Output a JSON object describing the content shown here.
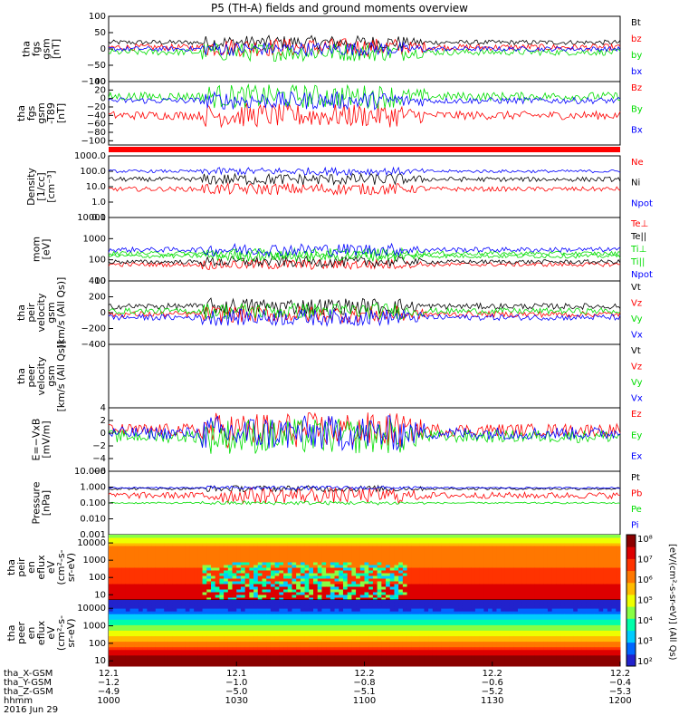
{
  "title": "P5 (TH-A) fields and ground moments overview",
  "colors": {
    "black": "#000000",
    "red": "#ff0000",
    "green": "#00dd00",
    "blue": "#0000ff"
  },
  "chart_data": [
    {
      "type": "line",
      "ylabel": [
        "tha",
        "fgs",
        "gsm",
        "[nT]"
      ],
      "ylim": [
        -100,
        100
      ],
      "yscale": "linear",
      "ticks": [
        "100",
        "50",
        "0",
        "−50",
        "−100"
      ],
      "tickvals": [
        100,
        50,
        0,
        -50,
        -100
      ],
      "series": [
        {
          "name": "Bt",
          "color": "#000000",
          "level": 20,
          "noise": 6
        },
        {
          "name": "bz",
          "color": "#ff0000",
          "level": 5,
          "noise": 8
        },
        {
          "name": "by",
          "color": "#00dd00",
          "level": -10,
          "noise": 8
        },
        {
          "name": "bx",
          "color": "#0000ff",
          "level": 0,
          "noise": 6
        }
      ]
    },
    {
      "type": "line",
      "ylabel": [
        "tha",
        "fgs",
        "gsm",
        "-T89",
        "[nT]"
      ],
      "ylim": [
        -110,
        40
      ],
      "yscale": "linear",
      "ticks": [
        "40",
        "20",
        "0",
        "−20",
        "−40",
        "−60",
        "−80",
        "−100"
      ],
      "tickvals": [
        40,
        20,
        0,
        -20,
        -40,
        -60,
        -80,
        -100
      ],
      "series": [
        {
          "name": "Bz",
          "color": "#ff0000",
          "level": -40,
          "noise": 8
        },
        {
          "name": "By",
          "color": "#00dd00",
          "level": 5,
          "noise": 8
        },
        {
          "name": "Bx",
          "color": "#0000ff",
          "level": -5,
          "noise": 6
        }
      ]
    },
    {
      "type": "line",
      "ylabel": [
        "Density",
        "[1/cc]",
        "[cm⁻³]"
      ],
      "ylim": [
        0.1,
        1000
      ],
      "yscale": "log",
      "ticks": [
        "1000.0",
        "100.0",
        "10.0",
        "1.0",
        "0.1"
      ],
      "tickvals": [
        1000,
        100,
        10,
        1,
        0.1
      ],
      "series": [
        {
          "name": "Ne",
          "color": "#ff0000",
          "level": 7,
          "noise": 0.15
        },
        {
          "name": "Ni",
          "color": "#000000",
          "level": 30,
          "noise": 0.15
        },
        {
          "name": "Npot",
          "color": "#0000ff",
          "level": 100,
          "noise": 0.1
        }
      ]
    },
    {
      "type": "line",
      "ylabel": [
        "mom",
        "[eV]"
      ],
      "ylim": [
        10,
        10000
      ],
      "yscale": "log",
      "ticks": [
        "10000",
        "1000",
        "100",
        "10"
      ],
      "tickvals": [
        10000,
        1000,
        100,
        10
      ],
      "series": [
        {
          "name": "Te⊥",
          "color": "#ff0000",
          "level": 60,
          "noise": 0.1
        },
        {
          "name": "Te||",
          "color": "#000000",
          "level": 80,
          "noise": 0.1
        },
        {
          "name": "Ti⊥",
          "color": "#00dd00",
          "level": 150,
          "noise": 0.1
        },
        {
          "name": "Ti||",
          "color": "#00dd00",
          "level": 200,
          "noise": 0.1
        },
        {
          "name": "Npot",
          "color": "#0000ff",
          "level": 300,
          "noise": 0.12
        }
      ]
    },
    {
      "type": "line",
      "ylabel": [
        "tha",
        "peir",
        "velocity",
        "gsm",
        "[km/s (All Qs)]"
      ],
      "ylim": [
        -400,
        400
      ],
      "yscale": "linear",
      "ticks": [
        "400",
        "200",
        "0",
        "−200",
        "−400"
      ],
      "tickvals": [
        400,
        200,
        0,
        -200,
        -400
      ],
      "series": [
        {
          "name": "Vt",
          "color": "#000000",
          "level": 80,
          "noise": 30
        },
        {
          "name": "Vz",
          "color": "#ff0000",
          "level": -20,
          "noise": 30
        },
        {
          "name": "Vy",
          "color": "#00dd00",
          "level": 20,
          "noise": 30
        },
        {
          "name": "Vx",
          "color": "#0000ff",
          "level": -60,
          "noise": 30
        }
      ]
    },
    {
      "type": "line",
      "ylabel": [
        "tha",
        "peer",
        "velocity",
        "gsm",
        "[km/s (All Qs)]"
      ],
      "ylim": [
        -400,
        400
      ],
      "yscale": "linear",
      "ticks": [],
      "tickvals": [],
      "series": [
        {
          "name": "Vt",
          "color": "#000000",
          "level": null
        },
        {
          "name": "Vz",
          "color": "#ff0000",
          "level": null
        },
        {
          "name": "Vy",
          "color": "#00dd00",
          "level": null
        },
        {
          "name": "Vx",
          "color": "#0000ff",
          "level": null
        }
      ]
    },
    {
      "type": "line",
      "ylabel": [
        "E=−VxB",
        "[mV/m]"
      ],
      "ylim": [
        -6,
        4
      ],
      "yscale": "linear",
      "ticks": [
        "4",
        "2",
        "0",
        "−2",
        "−4",
        "−6"
      ],
      "tickvals": [
        4,
        2,
        0,
        -2,
        -4,
        -6
      ],
      "series": [
        {
          "name": "Ez",
          "color": "#ff0000",
          "level": 0.5,
          "noise": 0.8
        },
        {
          "name": "Ey",
          "color": "#00dd00",
          "level": -0.5,
          "noise": 0.8
        },
        {
          "name": "Ex",
          "color": "#0000ff",
          "level": 0,
          "noise": 0.8
        }
      ]
    },
    {
      "type": "line",
      "ylabel": [
        "Pressure",
        "[nPa]"
      ],
      "ylim": [
        0.001,
        10
      ],
      "yscale": "log",
      "ticks": [
        "10.000",
        "1.000",
        "0.100",
        "0.010",
        "0.001"
      ],
      "tickvals": [
        10,
        1,
        0.1,
        0.01,
        0.001
      ],
      "series": [
        {
          "name": "Pt",
          "color": "#000000",
          "level": 0.8,
          "noise": 0.08
        },
        {
          "name": "Pb",
          "color": "#ff0000",
          "level": 0.3,
          "noise": 0.2
        },
        {
          "name": "Pe",
          "color": "#00dd00",
          "level": 0.1,
          "noise": 0.05
        },
        {
          "name": "Pi",
          "color": "#0000ff",
          "level": 0.9,
          "noise": 0.05
        }
      ]
    },
    {
      "type": "heatmap",
      "ylabel": [
        "tha",
        "peir",
        "en",
        "eflux",
        "eV",
        "(cm²-s-",
        "sr-eV)"
      ],
      "ylim": [
        5,
        30000
      ],
      "yscale": "log",
      "ticks": [
        "10000",
        "1000",
        "100",
        "10"
      ],
      "tickvals": [
        10000,
        1000,
        100,
        10
      ]
    },
    {
      "type": "heatmap",
      "ylabel": [
        "tha",
        "peer",
        "en",
        "eflux",
        "eV",
        "(cm²-s-",
        "sr-eV)"
      ],
      "ylim": [
        5,
        30000
      ],
      "yscale": "log",
      "ticks": [
        "10000",
        "1000",
        "100",
        "10"
      ],
      "tickvals": [
        10000,
        1000,
        100,
        10
      ]
    }
  ],
  "colorbar": {
    "label": "[eV/(cm²-s-sr-eV)] (All Qs)",
    "ticks": [
      "10⁸",
      "10⁷",
      "10⁶",
      "10⁵",
      "10⁴",
      "10³",
      "10²"
    ]
  },
  "xaxis": {
    "rows": [
      {
        "label": "tha_X-GSM",
        "values": [
          "12.1",
          "12.1",
          "12.2",
          "12.2",
          "12.2"
        ]
      },
      {
        "label": "tha_Y-GSM",
        "values": [
          "−1.2",
          "−1.0",
          "−0.8",
          "−0.6",
          "−0.4"
        ]
      },
      {
        "label": "tha_Z-GSM",
        "values": [
          "−4.9",
          "−5.0",
          "−5.1",
          "−5.2",
          "−5.3"
        ]
      },
      {
        "label": "hhmm",
        "values": [
          "1000",
          "1030",
          "1100",
          "1130",
          "1200"
        ]
      }
    ],
    "date": "2016 Jun 29"
  }
}
